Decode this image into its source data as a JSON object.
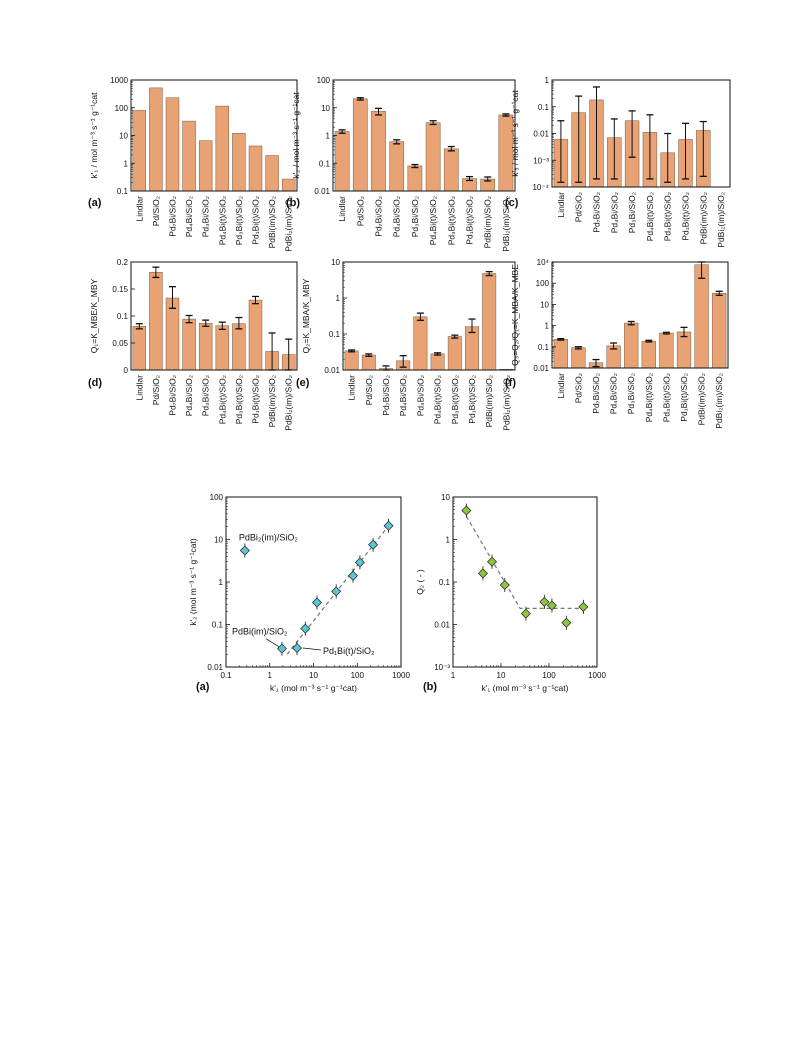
{
  "colors": {
    "bar_fill": "#E8A274",
    "bar_stroke": "#7a5a40",
    "scatter_a_fill": "#5BC6D6",
    "scatter_b_fill": "#8CC63E",
    "trend_line": "#777777"
  },
  "chart_data": [
    {
      "type": "bar",
      "panel_label": "(a)",
      "ylabel": "k'₁ / mol m⁻³ s⁻¹ g⁻¹cat",
      "yscale": "log",
      "ylim": [
        0.1,
        1000
      ],
      "yticks": [
        "0.1",
        "1",
        "10",
        "100",
        "1000"
      ],
      "categories": [
        "Lindlar",
        "Pd/SiO₂",
        "Pd₇Bi/SiO₂",
        "Pd₄Bi/SiO₂",
        "Pd₃Bi/SiO₂",
        "Pd₄Bi(t)/SiO₂",
        "Pd₃Bi(t)/SiO₂",
        "Pd₁Bi(t)/SiO₂",
        "PdBi(im)/SiO₂",
        "PdBi₂(im)/SiO₂"
      ],
      "values": [
        80,
        520,
        230,
        33,
        6.5,
        115,
        12,
        4.2,
        1.9,
        0.27
      ],
      "errors": [
        null,
        null,
        null,
        null,
        null,
        null,
        null,
        null,
        null,
        null
      ]
    },
    {
      "type": "bar",
      "panel_label": "(b)",
      "ylabel": "k'₂ / mol m⁻³ s⁻¹ g⁻¹cat",
      "yscale": "log",
      "ylim": [
        0.01,
        100
      ],
      "yticks": [
        "0.01",
        "0.1",
        "1",
        "10",
        "100"
      ],
      "categories": [
        "Lindlar",
        "Pd/SiO₂",
        "Pd₇Bi/SiO₂",
        "Pd₄Bi/SiO₂",
        "Pd₃Bi/SiO₂",
        "Pd₄Bi(t)/SiO₂",
        "Pd₃Bi(t)/SiO₂",
        "Pd₁Bi(t)/SiO₂",
        "PdBi(im)/SiO₂",
        "PdBi₂(im)/SiO₂"
      ],
      "values": [
        1.4,
        21,
        7.5,
        0.6,
        0.08,
        2.9,
        0.33,
        0.028,
        0.027,
        5.5
      ],
      "errors": [
        [
          1.2,
          1.6
        ],
        [
          19,
          23
        ],
        [
          5.5,
          9.5
        ],
        [
          0.5,
          0.7
        ],
        [
          0.07,
          0.09
        ],
        [
          2.5,
          3.4
        ],
        [
          0.28,
          0.4
        ],
        [
          0.024,
          0.033
        ],
        [
          0.023,
          0.032
        ],
        [
          5,
          6
        ]
      ]
    },
    {
      "type": "bar",
      "panel_label": "(c)",
      "ylabel": "k'₃ / mol m⁻³ s⁻¹ g⁻¹cat",
      "yscale": "log",
      "ylim": [
        0.0001,
        1
      ],
      "yticks": [
        "10⁻⁴",
        "10⁻³",
        "0.01",
        "0.1",
        "1"
      ],
      "categories": [
        "Lindlar",
        "Pd/SiO₂",
        "Pd₇Bi/SiO₂",
        "Pd₄Bi/SiO₂",
        "Pd₃Bi/SiO₂",
        "Pd₄Bi(t)/SiO₂",
        "Pd₃Bi(t)/SiO₂",
        "Pd₁Bi(t)/SiO₂",
        "PdBi(im)/SiO₂",
        "PdBi₂(im)/SiO₂"
      ],
      "values": [
        0.006,
        0.06,
        0.18,
        0.007,
        0.03,
        0.011,
        0.0019,
        0.006,
        0.013,
        null
      ],
      "errors": [
        [
          0.00015,
          0.03
        ],
        [
          0.00015,
          0.25
        ],
        [
          0.0002,
          0.55
        ],
        [
          0.0002,
          0.035
        ],
        [
          0.0013,
          0.07
        ],
        [
          0.0002,
          0.05
        ],
        [
          0.00015,
          0.01
        ],
        [
          0.0002,
          0.024
        ],
        [
          0.00025,
          0.028
        ],
        null
      ]
    },
    {
      "type": "bar",
      "panel_label": "(d)",
      "ylabel": "Q₁=K_MBE/K_MBY",
      "yscale": "linear",
      "ylim": [
        0,
        0.21
      ],
      "yticks": [
        "0",
        "0.05",
        "0.1",
        "0.15",
        "0.2"
      ],
      "categories": [
        "Lindlar",
        "Pd/SiO₂",
        "Pd₇Bi/SiO₂",
        "Pd₄Bi/SiO₂",
        "Pd₃Bi/SiO₂",
        "Pd₄Bi(t)/SiO₂",
        "Pd₃Bi(t)/SiO₂",
        "Pd₁Bi(t)/SiO₂",
        "PdBi(im)/SiO₂",
        "PdBi₂(im)/SiO₂"
      ],
      "values": [
        0.085,
        0.19,
        0.14,
        0.099,
        0.091,
        0.086,
        0.09,
        0.136,
        0.036,
        0.03
      ],
      "errors": [
        [
          0.08,
          0.09
        ],
        [
          0.18,
          0.2
        ],
        [
          0.12,
          0.162
        ],
        [
          0.092,
          0.106
        ],
        [
          0.085,
          0.097
        ],
        [
          0.079,
          0.093
        ],
        [
          0.08,
          0.102
        ],
        [
          0.129,
          0.143
        ],
        [
          0,
          0.072
        ],
        [
          0,
          0.06
        ]
      ]
    },
    {
      "type": "bar",
      "panel_label": "(e)",
      "ylabel": "Q₂=K_MBA/K_MBY",
      "yscale": "log",
      "ylim": [
        0.01,
        10
      ],
      "yticks": [
        "0.01",
        "0.1",
        "1",
        "10"
      ],
      "categories": [
        "Lindlar",
        "Pd/SiO₂",
        "Pd₇Bi/SiO₂",
        "Pd₄Bi/SiO₂",
        "Pd₃Bi/SiO₂",
        "Pd₄Bi(t)/SiO₂",
        "Pd₃Bi(t)/SiO₂",
        "Pd₁Bi(t)/SiO₂",
        "PdBi(im)/SiO₂",
        "PdBi₂(im)/SiO₂"
      ],
      "values": [
        0.034,
        0.026,
        0.011,
        0.018,
        0.3,
        0.028,
        0.085,
        0.16,
        4.8,
        0.0105
      ],
      "errors": [
        [
          0.032,
          0.036
        ],
        [
          0.024,
          0.028
        ],
        [
          0.01,
          0.013
        ],
        [
          0.012,
          0.025
        ],
        [
          0.24,
          0.38
        ],
        [
          0.026,
          0.03
        ],
        [
          0.077,
          0.093
        ],
        [
          0.11,
          0.26
        ],
        [
          4.2,
          5.4
        ],
        null
      ]
    },
    {
      "type": "bar",
      "panel_label": "(f)",
      "ylabel": "Q₃=Q₂/Q₁=K_MBA/K_MBE",
      "yscale": "log",
      "ylim": [
        0.01,
        10000
      ],
      "yticks": [
        "0.01",
        "0.1",
        "1",
        "10",
        "100",
        "10⁴"
      ],
      "categories": [
        "Lindlar",
        "Pd/SiO₂",
        "Pd₇Bi/SiO₂",
        "Pd₄Bi/SiO₂",
        "Pd₃Bi/SiO₂",
        "Pd₄Bi(t)/SiO₂",
        "Pd₃Bi(t)/SiO₂",
        "Pd₁Bi(t)/SiO₂",
        "PdBi(im)/SiO₂",
        "PdBi₂(im)/SiO₂"
      ],
      "values": [
        0.42,
        0.14,
        0.02,
        0.18,
        3.5,
        0.33,
        0.95,
        1.1,
        7000,
        170
      ],
      "errors": [
        [
          0.38,
          0.46
        ],
        [
          0.12,
          0.16
        ],
        [
          0.012,
          0.03
        ],
        [
          0.12,
          0.26
        ],
        [
          2.8,
          4.3
        ],
        [
          0.3,
          0.37
        ],
        [
          0.85,
          1.05
        ],
        [
          0.6,
          2
        ],
        [
          1200,
          12000
        ],
        [
          130,
          220
        ]
      ]
    },
    {
      "type": "scatter",
      "panel_label": "(a)",
      "xlabel": "k'₁ (mol m⁻³ s⁻¹ g⁻¹cat)",
      "ylabel": "k'₂ (mol m⁻³ s⁻¹ g⁻¹cat)",
      "xscale": "log",
      "yscale": "log",
      "xlim": [
        0.1,
        1000
      ],
      "ylim": [
        0.01,
        100
      ],
      "xticks": [
        "0.1",
        "1",
        "10",
        "100",
        "1000"
      ],
      "yticks": [
        "0.01",
        "0.1",
        "1",
        "10",
        "100"
      ],
      "points": [
        {
          "x": 0.27,
          "y": 5.5
        },
        {
          "x": 1.9,
          "y": 0.027
        },
        {
          "x": 4.2,
          "y": 0.028
        },
        {
          "x": 6.5,
          "y": 0.08
        },
        {
          "x": 12,
          "y": 0.33
        },
        {
          "x": 33,
          "y": 0.6
        },
        {
          "x": 80,
          "y": 1.4
        },
        {
          "x": 115,
          "y": 2.9
        },
        {
          "x": 230,
          "y": 7.5
        },
        {
          "x": 520,
          "y": 21
        }
      ],
      "trend_line": [
        [
          2.5,
          0.02
        ],
        [
          520,
          21
        ]
      ],
      "annotations": [
        "PdBi₂(im)/SiO₂",
        "PdBi(im)/SiO₂",
        "Pd₁Bi(t)/SiO₂"
      ]
    },
    {
      "type": "scatter",
      "panel_label": "(b)",
      "xlabel": "k'₁ (mol m⁻³ s⁻¹ g⁻¹cat)",
      "ylabel": "Q₂ ( - )",
      "xscale": "log",
      "yscale": "log",
      "xlim": [
        1,
        1000
      ],
      "ylim": [
        0.001,
        10
      ],
      "xticks": [
        "1",
        "10",
        "100",
        "1000"
      ],
      "yticks": [
        "10⁻³",
        "0.01",
        "0.1",
        "1",
        "10"
      ],
      "points": [
        {
          "x": 1.9,
          "y": 4.8
        },
        {
          "x": 4.2,
          "y": 0.16
        },
        {
          "x": 6.5,
          "y": 0.3
        },
        {
          "x": 12,
          "y": 0.085
        },
        {
          "x": 33,
          "y": 0.018
        },
        {
          "x": 80,
          "y": 0.034
        },
        {
          "x": 115,
          "y": 0.028
        },
        {
          "x": 230,
          "y": 0.011
        },
        {
          "x": 520,
          "y": 0.026
        }
      ],
      "trend_line": [
        [
          1.9,
          3.5
        ],
        [
          25,
          0.024
        ],
        [
          520,
          0.024
        ]
      ],
      "annotations": []
    }
  ]
}
